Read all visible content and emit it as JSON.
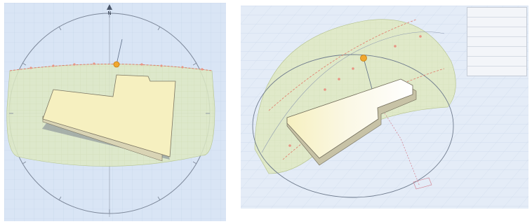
{
  "left_view": {
    "north_label": "N",
    "colors": {
      "background": "#d9e5f5",
      "grid": "#b9cbe3",
      "sun_band": "#dde9c3",
      "sun_path": "#e07a6a",
      "building_top": "#f6f0c0"
    }
  },
  "right_view": {
    "colors": {
      "background": "#e4ecf7",
      "sun_dome": "#dfe8bd",
      "sun_marker": "#f0a830",
      "building_top": "#f6f0c0"
    },
    "info_panel": {
      "rows": [
        {
          "label": "",
          "value": ""
        },
        {
          "label": "",
          "value": ""
        },
        {
          "label": "",
          "value": ""
        },
        {
          "label": "",
          "value": ""
        },
        {
          "label": "",
          "value": ""
        },
        {
          "label": "",
          "value": ""
        },
        {
          "label": "",
          "value": ""
        }
      ]
    }
  }
}
